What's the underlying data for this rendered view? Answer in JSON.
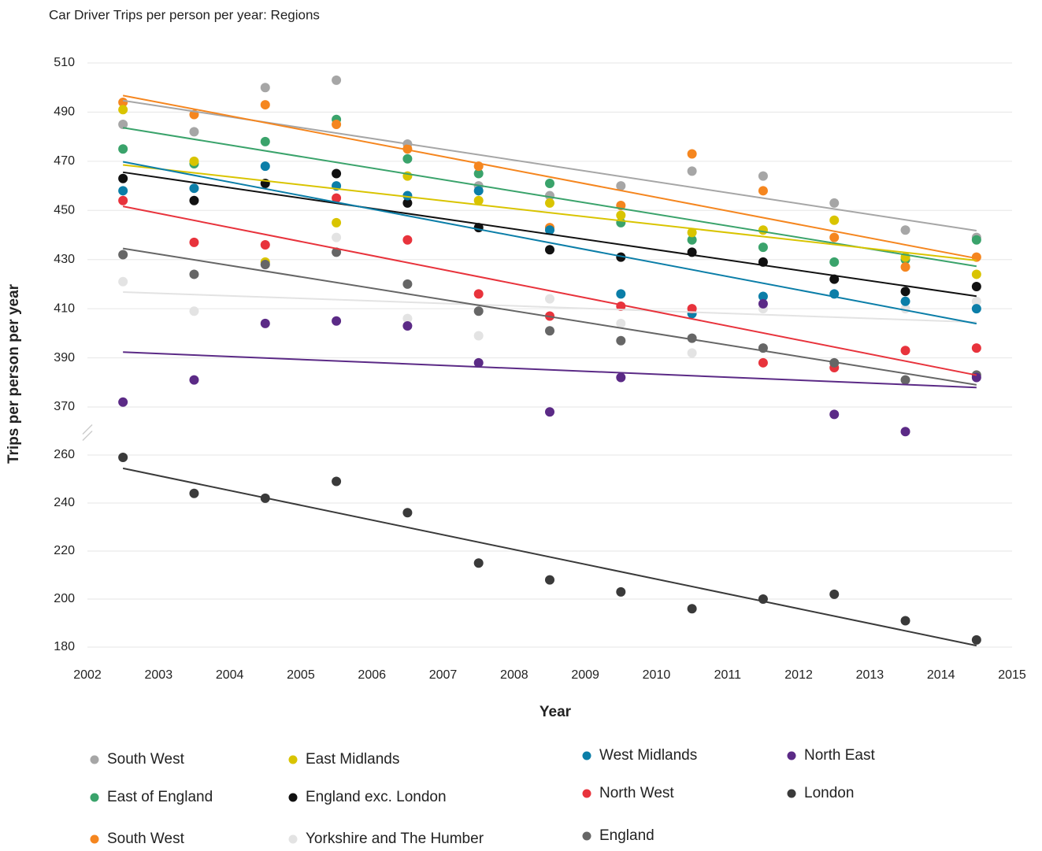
{
  "chart_data": {
    "type": "scatter",
    "title": "Car Driver Trips per person per year: Regions",
    "x_label": "Year",
    "y_label": "Trips per person per year",
    "x": [
      2002.5,
      2003.5,
      2004.5,
      2005.5,
      2006.5,
      2007.5,
      2008.5,
      2009.5,
      2010.5,
      2011.5,
      2012.5,
      2013.5,
      2014.5
    ],
    "xlim": [
      2002,
      2015
    ],
    "xticks": [
      2002,
      2003,
      2004,
      2005,
      2006,
      2007,
      2008,
      2009,
      2010,
      2011,
      2012,
      2013,
      2014,
      2015
    ],
    "ylim": [
      180,
      510
    ],
    "ybreak": [
      260,
      370
    ],
    "yticks": [
      180,
      200,
      220,
      240,
      260,
      370,
      390,
      410,
      430,
      450,
      470,
      490,
      510
    ],
    "grid": true,
    "trendline": true,
    "series": [
      {
        "name": "South West",
        "color": "#a6a6a6",
        "values": [
          485,
          482,
          500,
          503,
          477,
          460,
          456,
          460,
          466,
          464,
          453,
          442,
          439
        ]
      },
      {
        "name": "East of England",
        "color": "#3aa36b",
        "values": [
          475,
          469,
          478,
          487,
          471,
          465,
          461,
          445,
          438,
          435,
          429,
          430,
          438
        ]
      },
      {
        "name": "South West",
        "color": "#f5861f",
        "values": [
          494,
          489,
          493,
          485,
          475,
          468,
          443,
          452,
          473,
          458,
          439,
          427,
          431
        ]
      },
      {
        "name": "East Midlands",
        "color": "#d9c400",
        "values": [
          491,
          470,
          429,
          445,
          464,
          454,
          453,
          448,
          441,
          442,
          446,
          431,
          424
        ]
      },
      {
        "name": "England exc. London",
        "color": "#111111",
        "values": [
          463,
          454,
          461,
          465,
          453,
          443,
          434,
          431,
          433,
          429,
          422,
          417,
          419
        ]
      },
      {
        "name": "Yorkshire and The Humber",
        "color": "#e3e3e3",
        "values": [
          421,
          409,
          null,
          439,
          406,
          399,
          414,
          404,
          392,
          410,
          null,
          410,
          413
        ]
      },
      {
        "name": "West Midlands",
        "color": "#0b7ea8",
        "values": [
          458,
          459,
          468,
          460,
          456,
          458,
          442,
          416,
          408,
          415,
          416,
          413,
          410
        ]
      },
      {
        "name": "North West",
        "color": "#e8333c",
        "values": [
          454,
          437,
          436,
          455,
          438,
          416,
          407,
          411,
          410,
          388,
          386,
          393,
          394
        ]
      },
      {
        "name": "England",
        "color": "#666666",
        "values": [
          432,
          424,
          428,
          433,
          420,
          409,
          401,
          397,
          398,
          394,
          388,
          381,
          383
        ]
      },
      {
        "name": "North East",
        "color": "#5b2a86",
        "values": [
          372,
          381,
          404,
          405,
          403,
          388,
          368,
          382,
          null,
          412,
          367,
          360,
          382
        ]
      },
      {
        "name": "London",
        "color": "#3a3a3a",
        "values": [
          259,
          244,
          242,
          249,
          236,
          215,
          208,
          203,
          196,
          200,
          202,
          191,
          183
        ]
      }
    ]
  }
}
